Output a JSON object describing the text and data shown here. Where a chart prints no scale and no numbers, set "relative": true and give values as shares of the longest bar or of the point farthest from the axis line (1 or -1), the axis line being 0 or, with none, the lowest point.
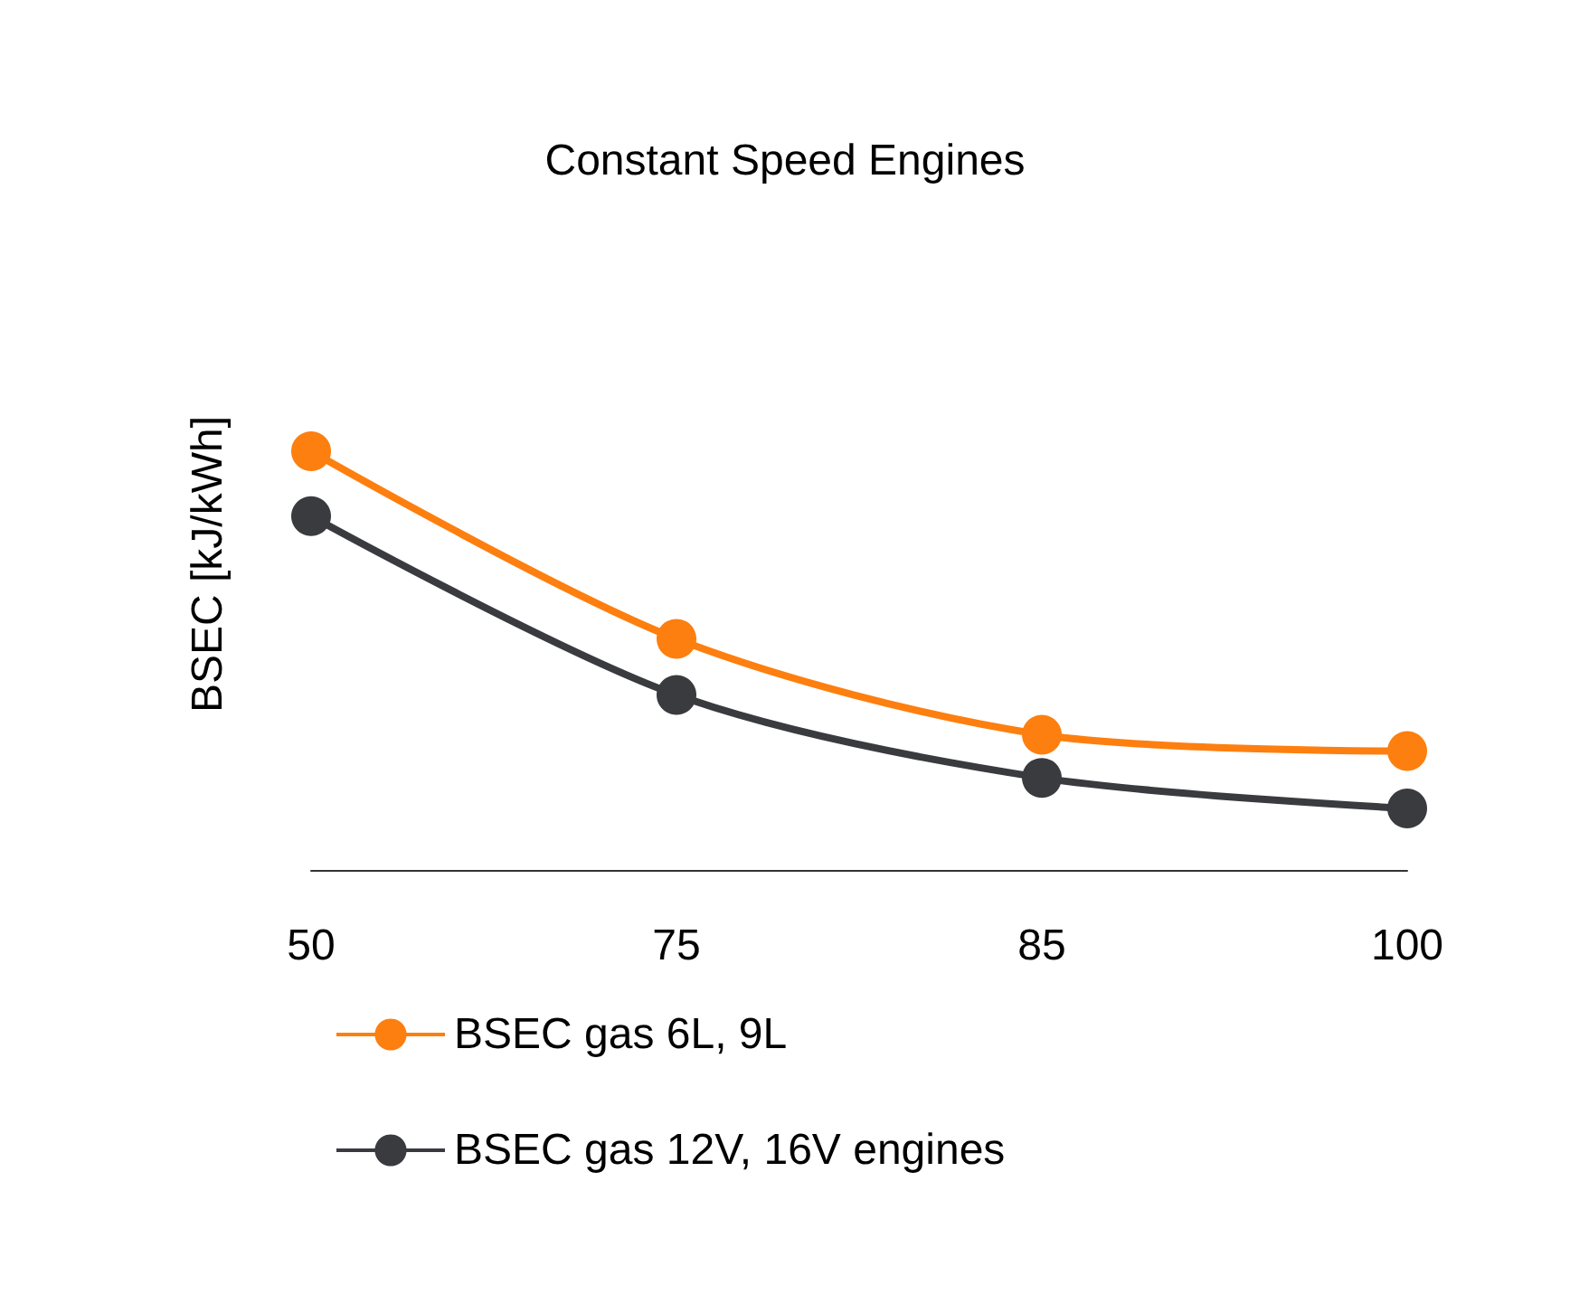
{
  "chart_data": {
    "type": "line",
    "title": "Constant Speed Engines",
    "ylabel": "BSEC [kJ/kWh]",
    "categories": [
      "50",
      "75",
      "85",
      "100"
    ],
    "relative": true,
    "legend": "bottom",
    "marker": "circle",
    "series": [
      {
        "name": "BSEC gas 6L, 9L",
        "color": "#fd7f0f",
        "values": [
          1,
          0.552,
          0.323,
          0.284
        ]
      },
      {
        "name": "BSEC gas 12V, 16V engines",
        "color": "#3a3b3f",
        "values": [
          0.845,
          0.418,
          0.22,
          0.147
        ]
      }
    ]
  }
}
